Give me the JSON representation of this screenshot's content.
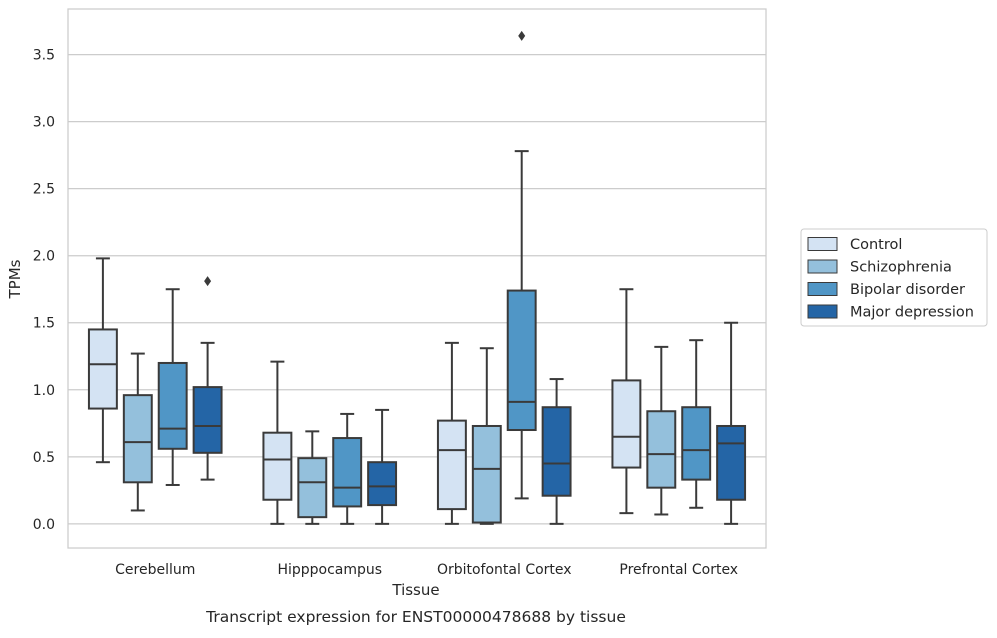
{
  "chart_data": {
    "type": "box",
    "title": "",
    "xlabel": "Tissue",
    "ylabel": "TPMs",
    "caption": "Transcript expression for ENST00000478688 by tissue",
    "ylim": [
      -0.18,
      3.84
    ],
    "yticks": [
      0.0,
      0.5,
      1.0,
      1.5,
      2.0,
      2.5,
      3.0,
      3.5
    ],
    "ytick_labels": [
      "0.0",
      "0.5",
      "1.0",
      "1.5",
      "2.0",
      "2.5",
      "3.0",
      "3.5"
    ],
    "grid": "horizontal",
    "legend_position": "right-outside",
    "categories": [
      "Cerebellum",
      "Hipppocampus",
      "Orbitofontal Cortex",
      "Prefrontal Cortex"
    ],
    "series": [
      {
        "name": "Control",
        "color": "#d4e3f3",
        "boxes": [
          {
            "whislo": 0.46,
            "q1": 0.86,
            "med": 1.19,
            "q3": 1.45,
            "whishi": 1.98,
            "fliers": []
          },
          {
            "whislo": 0.0,
            "q1": 0.18,
            "med": 0.48,
            "q3": 0.68,
            "whishi": 1.21,
            "fliers": []
          },
          {
            "whislo": 0.0,
            "q1": 0.11,
            "med": 0.55,
            "q3": 0.77,
            "whishi": 1.35,
            "fliers": []
          },
          {
            "whislo": 0.08,
            "q1": 0.42,
            "med": 0.65,
            "q3": 1.07,
            "whishi": 1.75,
            "fliers": []
          }
        ]
      },
      {
        "name": "Schizophrenia",
        "color": "#94c0dc",
        "boxes": [
          {
            "whislo": 0.1,
            "q1": 0.31,
            "med": 0.61,
            "q3": 0.96,
            "whishi": 1.27,
            "fliers": []
          },
          {
            "whislo": 0.0,
            "q1": 0.05,
            "med": 0.31,
            "q3": 0.49,
            "whishi": 0.69,
            "fliers": []
          },
          {
            "whislo": 0.0,
            "q1": 0.01,
            "med": 0.41,
            "q3": 0.73,
            "whishi": 1.31,
            "fliers": []
          },
          {
            "whislo": 0.07,
            "q1": 0.27,
            "med": 0.52,
            "q3": 0.84,
            "whishi": 1.32,
            "fliers": []
          }
        ]
      },
      {
        "name": "Bipolar disorder",
        "color": "#5096c6",
        "boxes": [
          {
            "whislo": 0.29,
            "q1": 0.56,
            "med": 0.71,
            "q3": 1.2,
            "whishi": 1.75,
            "fliers": []
          },
          {
            "whislo": 0.0,
            "q1": 0.13,
            "med": 0.27,
            "q3": 0.64,
            "whishi": 0.82,
            "fliers": []
          },
          {
            "whislo": 0.19,
            "q1": 0.7,
            "med": 0.91,
            "q3": 1.74,
            "whishi": 2.78,
            "fliers": [
              3.64
            ]
          },
          {
            "whislo": 0.12,
            "q1": 0.33,
            "med": 0.55,
            "q3": 0.87,
            "whishi": 1.37,
            "fliers": []
          }
        ]
      },
      {
        "name": "Major depression",
        "color": "#2465a6",
        "boxes": [
          {
            "whislo": 0.33,
            "q1": 0.53,
            "med": 0.73,
            "q3": 1.02,
            "whishi": 1.35,
            "fliers": [
              1.81
            ]
          },
          {
            "whislo": 0.0,
            "q1": 0.14,
            "med": 0.28,
            "q3": 0.46,
            "whishi": 0.85,
            "fliers": []
          },
          {
            "whislo": 0.0,
            "q1": 0.21,
            "med": 0.45,
            "q3": 0.87,
            "whishi": 1.08,
            "fliers": []
          },
          {
            "whislo": 0.0,
            "q1": 0.18,
            "med": 0.6,
            "q3": 0.73,
            "whishi": 1.5,
            "fliers": []
          }
        ]
      }
    ]
  }
}
